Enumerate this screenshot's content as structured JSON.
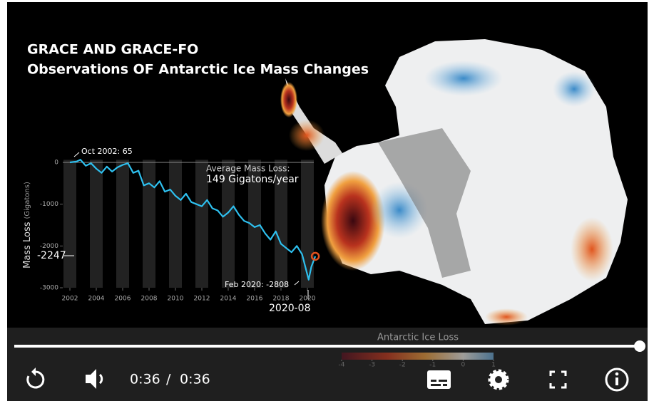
{
  "video": {
    "title_lines": [
      "GRACE AND GRACE-FO",
      "Observations OF Antarctic Ice Mass Changes"
    ],
    "chart": {
      "ylabel": "Mass Loss",
      "ylabel_unit": "(Gigatons)",
      "xlim": [
        2001.5,
        2021
      ],
      "ylim": [
        -3000,
        300
      ],
      "xticks": [
        2002,
        2004,
        2006,
        2008,
        2010,
        2012,
        2014,
        2016,
        2018,
        2020
      ],
      "yticks": [
        0,
        -1000,
        -2000,
        -3000
      ],
      "x": [
        2002.0,
        2002.5,
        2002.8,
        2003.2,
        2003.6,
        2004.0,
        2004.4,
        2004.8,
        2005.2,
        2005.6,
        2006.0,
        2006.4,
        2006.8,
        2007.2,
        2007.6,
        2008.0,
        2008.4,
        2008.8,
        2009.2,
        2009.6,
        2010.0,
        2010.4,
        2010.8,
        2011.2,
        2011.6,
        2012.0,
        2012.4,
        2012.8,
        2013.2,
        2013.6,
        2014.0,
        2014.4,
        2014.8,
        2015.2,
        2015.6,
        2016.0,
        2016.4,
        2016.8,
        2017.2,
        2017.6,
        2018.0,
        2018.4,
        2018.8,
        2019.2,
        2019.6,
        2020.1,
        2020.3,
        2020.6
      ],
      "y": [
        0,
        20,
        65,
        -80,
        -20,
        -150,
        -250,
        -100,
        -220,
        -120,
        -60,
        -20,
        -250,
        -200,
        -550,
        -500,
        -600,
        -450,
        -700,
        -650,
        -800,
        -900,
        -750,
        -950,
        -1000,
        -1050,
        -900,
        -1100,
        -1150,
        -1300,
        -1200,
        -1050,
        -1250,
        -1400,
        -1450,
        -1550,
        -1500,
        -1700,
        -1850,
        -1650,
        -1950,
        -2050,
        -2150,
        -2000,
        -2200,
        -2808,
        -2500,
        -2247
      ],
      "callout_start": "Oct 2002: 65",
      "callout_end": "Feb 2020: -2808",
      "callout_date": "2020-08",
      "callout_value": "-2247",
      "average_label": "Average Mass Loss:",
      "average_value": "149 Gigatons/year"
    },
    "colorbar": {
      "title": "Antarctic Ice Loss",
      "lim": [
        -4,
        1
      ],
      "ticks": [
        -4,
        -3,
        -2,
        -1,
        0,
        1
      ]
    },
    "player": {
      "time_current": "0:36",
      "separator": "/",
      "time_total": "0:36"
    }
  }
}
